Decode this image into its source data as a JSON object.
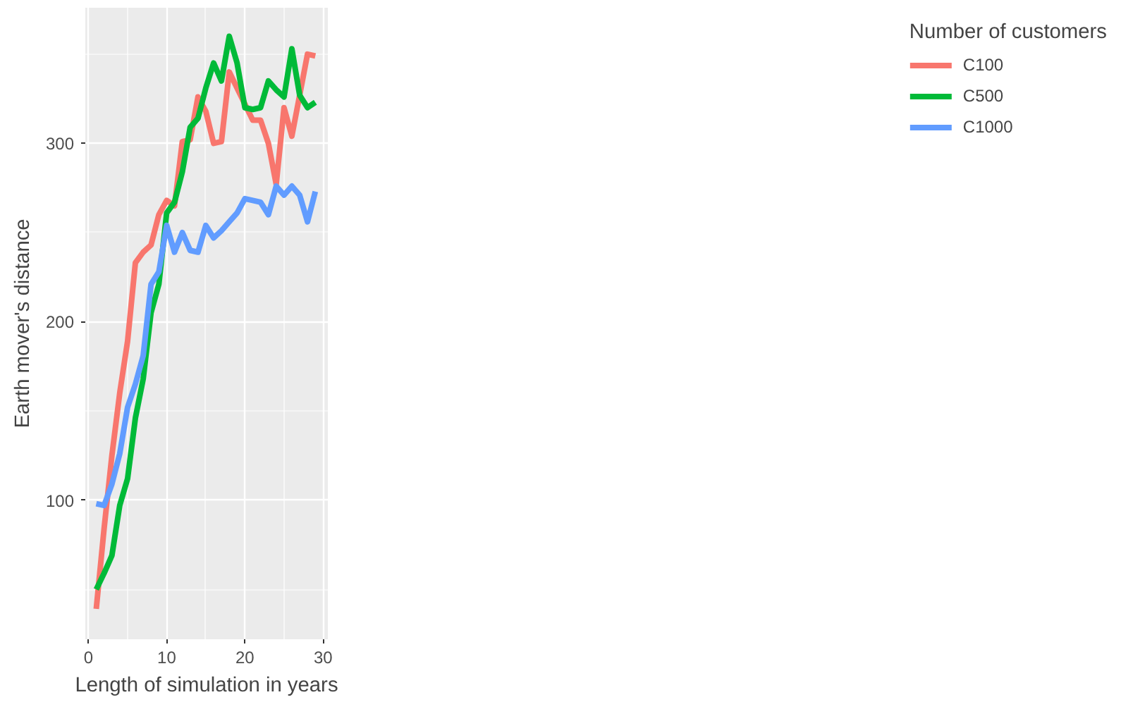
{
  "chart_data": {
    "type": "line",
    "xlabel": "Length of simulation in years",
    "ylabel": "Earth mover's distance",
    "legend_title": "Number of customers",
    "x": [
      1,
      2,
      3,
      4,
      5,
      6,
      7,
      8,
      9,
      10,
      11,
      12,
      13,
      14,
      15,
      16,
      17,
      18,
      19,
      20,
      21,
      22,
      23,
      24,
      25,
      26,
      27,
      28,
      29
    ],
    "series": [
      {
        "name": "C100",
        "color": "#f8766d",
        "values": [
          39,
          84,
          125,
          160,
          189,
          233,
          239,
          243,
          260,
          268,
          265,
          301,
          302,
          326,
          318,
          300,
          301,
          340,
          331,
          322,
          313,
          313,
          300,
          277,
          320,
          304,
          327,
          350,
          349
        ]
      },
      {
        "name": "C500",
        "color": "#00ba38",
        "values": [
          50,
          59,
          69,
          97,
          112,
          146,
          168,
          205,
          221,
          261,
          267,
          284,
          309,
          314,
          331,
          345,
          335,
          360,
          345,
          320,
          319,
          320,
          335,
          330,
          326,
          353,
          327,
          320,
          323
        ]
      },
      {
        "name": "C1000",
        "color": "#619cff",
        "values": [
          98,
          97,
          109,
          126,
          152,
          165,
          181,
          221,
          228,
          254,
          239,
          250,
          240,
          239,
          254,
          247,
          251,
          256,
          261,
          269,
          268,
          267,
          260,
          276,
          271,
          276,
          271,
          256,
          273
        ]
      }
    ],
    "xlim": [
      -0.4,
      30.6
    ],
    "ylim": [
      22,
      376
    ],
    "xticks": [
      0,
      10,
      20,
      30
    ],
    "yticks": [
      100,
      200,
      300
    ],
    "grid": true,
    "legend": "right",
    "line_style": "solid",
    "marker": "none"
  }
}
